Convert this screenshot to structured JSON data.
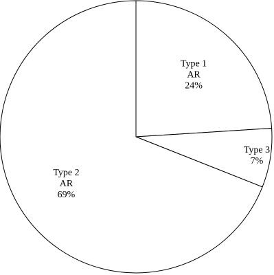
{
  "chart_data": {
    "type": "pie",
    "title": "",
    "slices": [
      {
        "label_lines": [
          "Type 1",
          "AR",
          "24%"
        ],
        "value": 24
      },
      {
        "label_lines": [
          "Type 3",
          "7%"
        ],
        "value": 7
      },
      {
        "label_lines": [
          "Type 2",
          "AR",
          "69%"
        ],
        "value": 69
      }
    ],
    "start": "12 o'clock",
    "direction": "clockwise",
    "fill_color": "#ffffff",
    "stroke_color": "#000000",
    "legend": "none"
  }
}
